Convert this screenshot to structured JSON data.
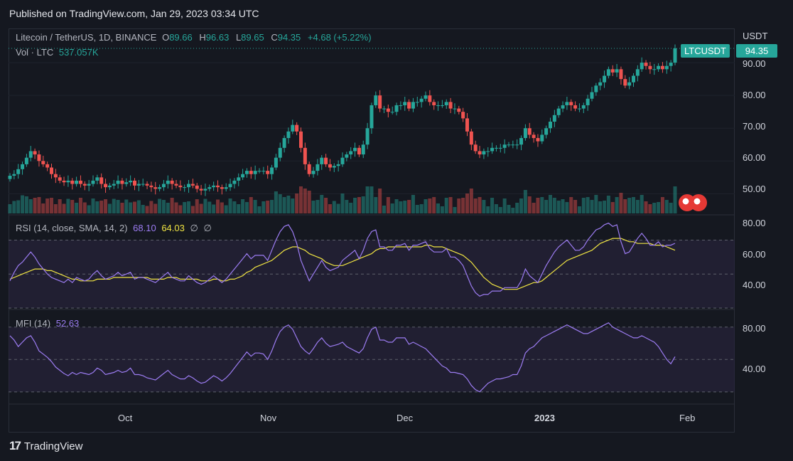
{
  "header": {
    "published": "Published on TradingView.com, Jan 29, 2023 03:34 UTC"
  },
  "legend": {
    "symbol": "Litecoin / TetherUS, 1D, BINANCE",
    "o_label": "O",
    "o": "89.66",
    "h_label": "H",
    "h": "96.63",
    "l_label": "L",
    "l": "89.65",
    "c_label": "C",
    "c": "94.35",
    "change": "+4.68 (+5.22%)",
    "vol_label": "Vol · LTC",
    "vol": "537.057K"
  },
  "price_axis": {
    "currency": "USDT",
    "ticks": [
      "90.00",
      "80.00",
      "70.00",
      "60.00",
      "50.00"
    ]
  },
  "price_tag": {
    "symbol": "LTCUSDT",
    "price": "94.35"
  },
  "rsi": {
    "label": "RSI (14, close, SMA, 14, 2)",
    "value": "68.10",
    "sma": "64.03",
    "extra1": "∅",
    "extra2": "∅",
    "ticks": [
      "80.00",
      "60.00",
      "40.00"
    ]
  },
  "mfi": {
    "label": "MFI (14)",
    "value": "52.63",
    "ticks": [
      "80.00",
      "40.00"
    ]
  },
  "time_axis": [
    "Oct",
    "Nov",
    "Dec",
    "2023",
    "Feb"
  ],
  "footer": {
    "brand": "TradingView"
  },
  "colors": {
    "up": "#26a69a",
    "down": "#ef5350",
    "rsi": "#9c7cf2",
    "rsi_sma": "#f0e442",
    "bg": "#151820"
  },
  "chart_data": [
    {
      "type": "candlestick",
      "title": "Litecoin / TetherUS, 1D, BINANCE",
      "ylabel": "USDT",
      "ylim": [
        44,
        100
      ],
      "x_labels": [
        "Oct",
        "Nov",
        "Dec",
        "2023",
        "Feb"
      ],
      "close": [
        55.5,
        56,
        57.5,
        59,
        61,
        63,
        62,
        60,
        59,
        58,
        56,
        55,
        54,
        53.5,
        54,
        53,
        54,
        53,
        52.5,
        53,
        54,
        55,
        53,
        52,
        52.5,
        53,
        54,
        53,
        53.5,
        54,
        52.5,
        53,
        53,
        52.5,
        52,
        51.5,
        52,
        53,
        54,
        53,
        52.5,
        52,
        52,
        53,
        52.5,
        51.5,
        51,
        51.5,
        52,
        52.5,
        52,
        51.5,
        52,
        53,
        54,
        55,
        56,
        57,
        56,
        57,
        57,
        57,
        56,
        58,
        61,
        64,
        67,
        69,
        71,
        69,
        64,
        59,
        56,
        57,
        59,
        61,
        59,
        58,
        58.5,
        59,
        61,
        62,
        63,
        64,
        62,
        65,
        70,
        77,
        80,
        76,
        76,
        75,
        75,
        77,
        77,
        78,
        76,
        78,
        78,
        79,
        80,
        78,
        77,
        77,
        77,
        78,
        76,
        76,
        75,
        73,
        69,
        65,
        63,
        62,
        63,
        63,
        64,
        64,
        64,
        65,
        65,
        65,
        65,
        67,
        70,
        68,
        67,
        66,
        68,
        70,
        72,
        74,
        76,
        77,
        78,
        77,
        76,
        76,
        77,
        79,
        81,
        83,
        84,
        86,
        88,
        87,
        88,
        85,
        83,
        84,
        86,
        88,
        90,
        89,
        88,
        88,
        89,
        88,
        89,
        90,
        94.35
      ]
    },
    {
      "type": "line",
      "title": "RSI (14, close, SMA, 14, 2)",
      "ylim": [
        30,
        84
      ],
      "series": [
        {
          "name": "RSI",
          "values": [
            46,
            51,
            55,
            57,
            60,
            63,
            60,
            56,
            53,
            50,
            48,
            47,
            46,
            45,
            47,
            45,
            48,
            47,
            46,
            47,
            50,
            52,
            49,
            47,
            48,
            49,
            51,
            49,
            50,
            51,
            47,
            48,
            48,
            47,
            46,
            45,
            47,
            49,
            51,
            48,
            47,
            46,
            46,
            49,
            47,
            45,
            44,
            45,
            47,
            49,
            47,
            45,
            47,
            50,
            53,
            56,
            59,
            62,
            59,
            61,
            61,
            61,
            58,
            64,
            70,
            75,
            78,
            79,
            75,
            68,
            58,
            52,
            46,
            50,
            54,
            58,
            54,
            52,
            53,
            54,
            58,
            60,
            62,
            64,
            59,
            64,
            71,
            75,
            76,
            66,
            66,
            64,
            64,
            67,
            67,
            68,
            64,
            67,
            67,
            68,
            69,
            65,
            63,
            63,
            63,
            65,
            60,
            60,
            58,
            55,
            49,
            43,
            39,
            37,
            38,
            38,
            40,
            40,
            40,
            42,
            42,
            42,
            42,
            46,
            53,
            49,
            47,
            45,
            50,
            55,
            59,
            63,
            66,
            68,
            70,
            67,
            64,
            64,
            66,
            70,
            73,
            76,
            77,
            79,
            80,
            78,
            79,
            69,
            62,
            63,
            67,
            71,
            74,
            71,
            67,
            67,
            69,
            66,
            67,
            67,
            68.1
          ]
        },
        {
          "name": "SMA",
          "values": [
            47,
            48,
            49,
            50,
            51,
            52,
            53,
            53,
            53,
            52,
            52,
            51,
            50,
            49,
            48,
            47,
            47,
            46,
            46,
            46,
            46,
            47,
            47,
            47,
            47,
            48,
            48,
            48,
            48,
            48,
            48,
            48,
            48,
            48,
            47,
            47,
            47,
            47,
            48,
            48,
            48,
            47,
            47,
            47,
            47,
            47,
            46,
            46,
            46,
            47,
            47,
            46,
            46,
            47,
            47,
            48,
            49,
            51,
            52,
            54,
            55,
            56,
            57,
            58,
            60,
            62,
            64,
            65,
            66,
            66,
            65,
            64,
            62,
            61,
            60,
            59,
            57,
            56,
            55,
            55,
            55,
            56,
            57,
            58,
            59,
            60,
            61,
            62,
            64,
            65,
            65,
            66,
            66,
            66,
            66,
            66,
            66,
            66,
            66,
            66,
            67,
            67,
            66,
            66,
            66,
            65,
            64,
            63,
            62,
            61,
            59,
            57,
            54,
            51,
            48,
            46,
            44,
            43,
            42,
            41,
            41,
            41,
            41,
            42,
            43,
            44,
            45,
            45,
            46,
            48,
            50,
            52,
            54,
            56,
            58,
            59,
            60,
            61,
            62,
            63,
            64,
            66,
            68,
            69,
            70,
            71,
            71,
            71,
            70,
            69,
            69,
            68,
            68,
            68,
            68,
            67,
            67,
            67,
            66,
            65,
            64.03
          ]
        }
      ]
    },
    {
      "type": "line",
      "title": "MFI (14)",
      "ylim": [
        10,
        95
      ],
      "series": [
        {
          "name": "MFI",
          "values": [
            72,
            68,
            62,
            66,
            70,
            72,
            66,
            58,
            55,
            52,
            48,
            43,
            40,
            37,
            35,
            38,
            36,
            38,
            37,
            36,
            38,
            42,
            40,
            36,
            37,
            38,
            40,
            38,
            39,
            42,
            36,
            36,
            35,
            33,
            32,
            31,
            34,
            37,
            40,
            36,
            34,
            32,
            32,
            35,
            33,
            30,
            28,
            29,
            32,
            35,
            33,
            30,
            33,
            37,
            42,
            47,
            52,
            57,
            53,
            56,
            56,
            55,
            50,
            58,
            68,
            76,
            80,
            82,
            78,
            70,
            62,
            58,
            55,
            60,
            66,
            70,
            65,
            62,
            63,
            64,
            66,
            62,
            60,
            58,
            56,
            60,
            70,
            78,
            80,
            68,
            68,
            66,
            66,
            70,
            70,
            70,
            64,
            66,
            64,
            62,
            60,
            56,
            52,
            48,
            44,
            42,
            38,
            38,
            37,
            36,
            32,
            26,
            22,
            20,
            24,
            28,
            30,
            32,
            32,
            33,
            34,
            36,
            36,
            44,
            56,
            60,
            62,
            66,
            70,
            72,
            74,
            76,
            78,
            80,
            82,
            80,
            78,
            76,
            74,
            74,
            76,
            78,
            80,
            82,
            84,
            80,
            78,
            76,
            74,
            72,
            70,
            70,
            72,
            70,
            68,
            66,
            62,
            56,
            50,
            46,
            52.63
          ]
        }
      ]
    }
  ]
}
